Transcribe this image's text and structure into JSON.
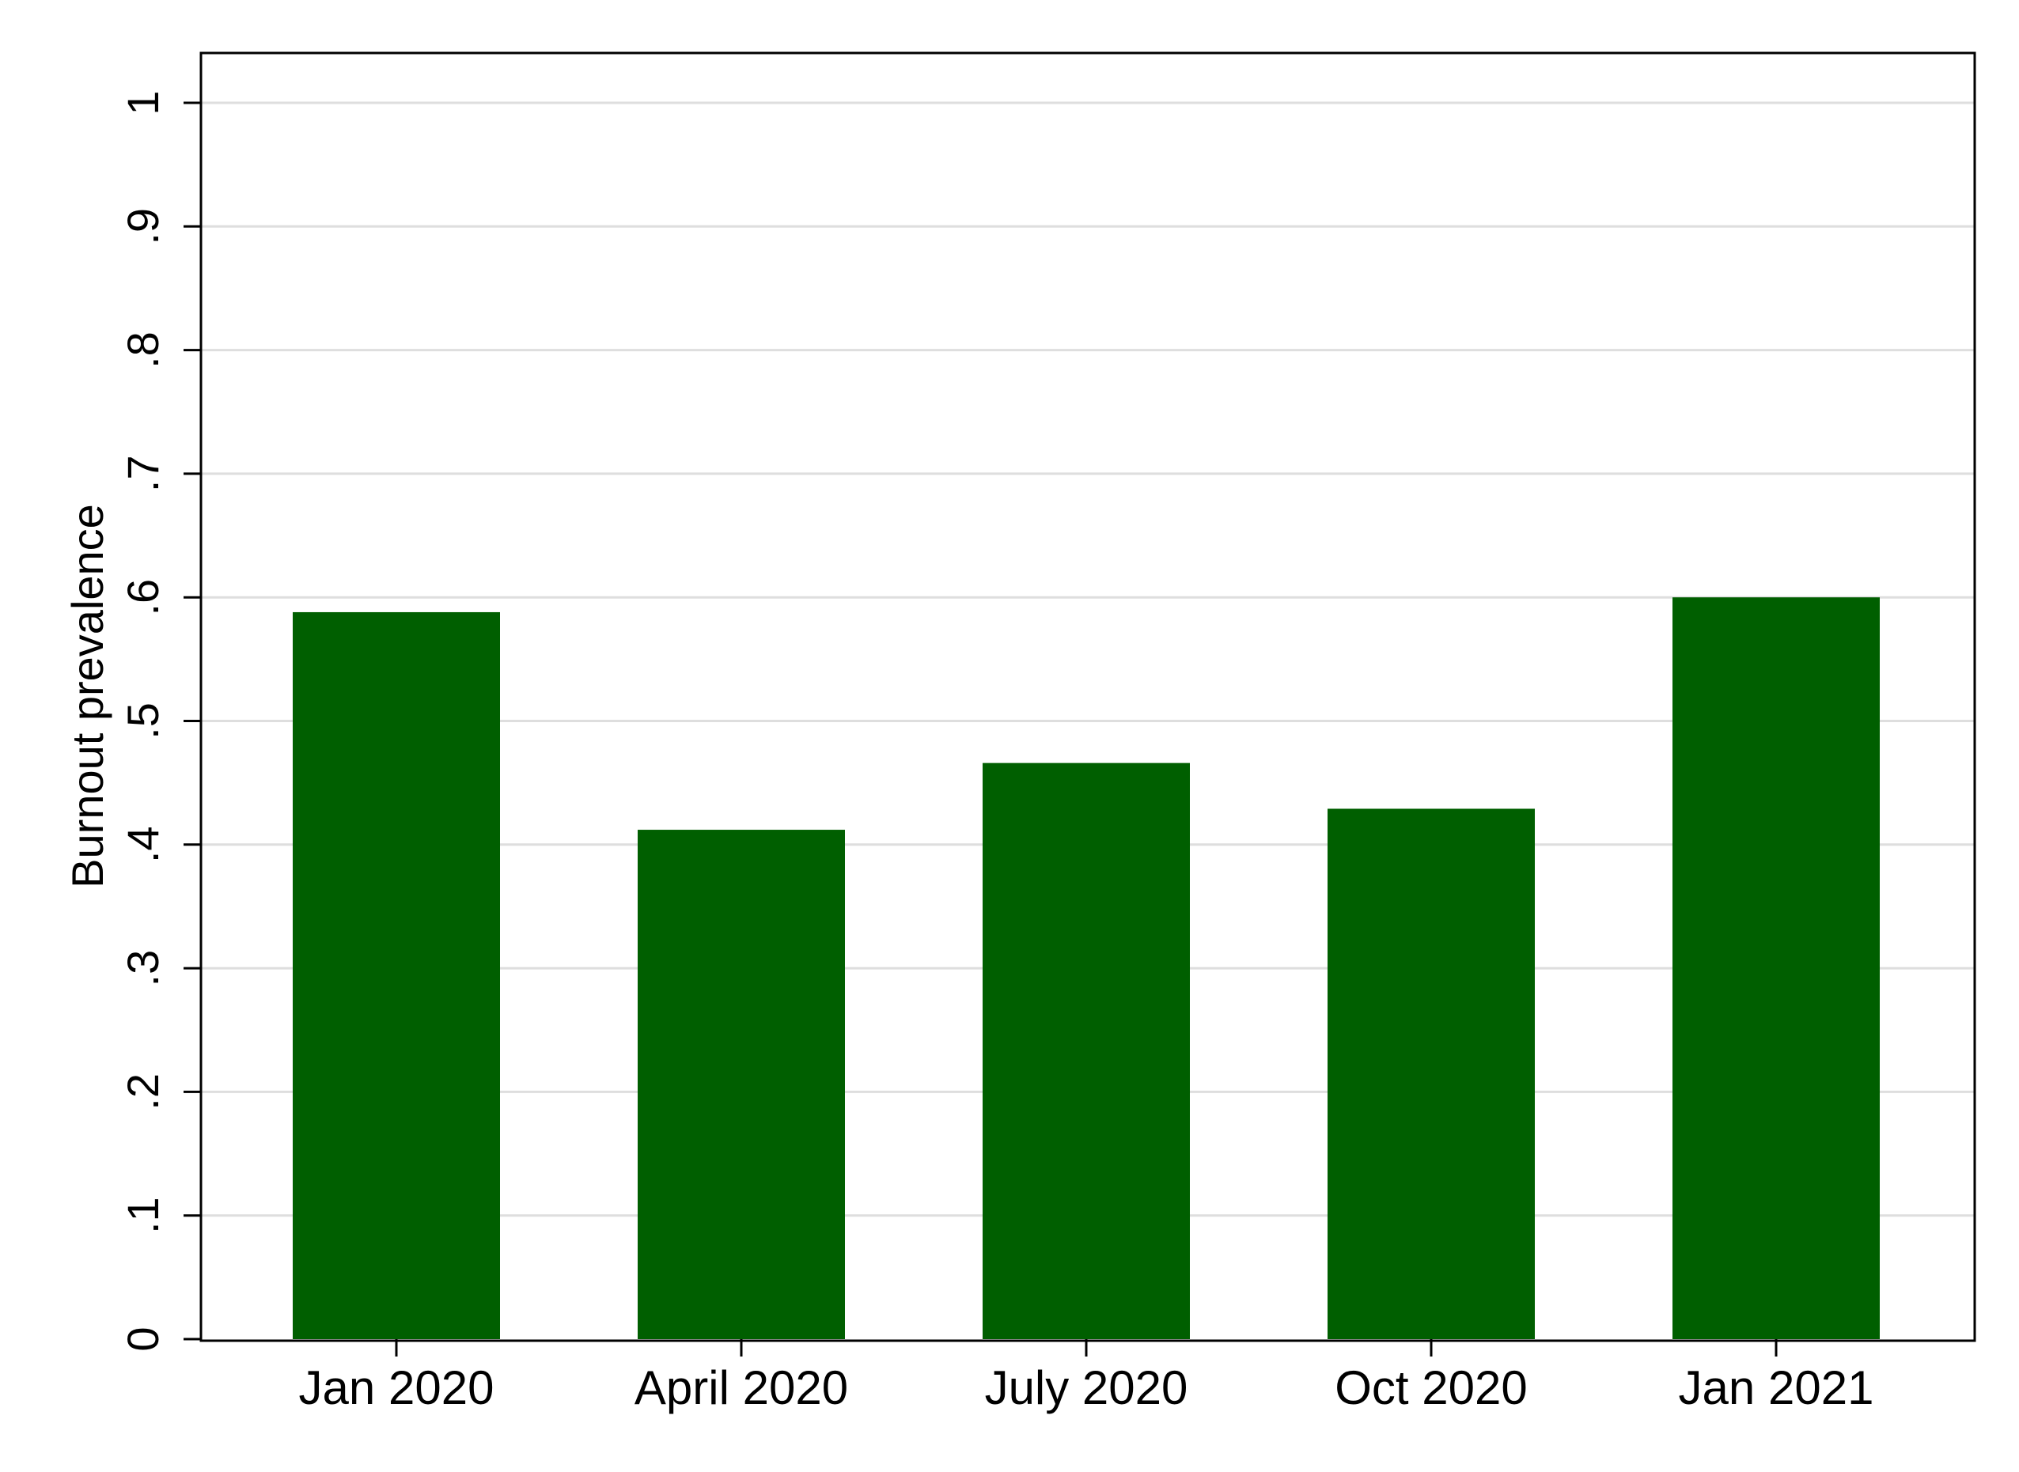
{
  "chart_data": {
    "type": "bar",
    "title": "",
    "xlabel": "",
    "ylabel": "Burnout prevalence",
    "categories": [
      "Jan 2020",
      "April 2020",
      "July 2020",
      "Oct 2020",
      "Jan 2021"
    ],
    "values": [
      0.588,
      0.412,
      0.466,
      0.429,
      0.6
    ],
    "ylim": [
      0,
      1
    ],
    "yticks": [
      0,
      0.1,
      0.2,
      0.3,
      0.4,
      0.5,
      0.6,
      0.7,
      0.8,
      0.9,
      1
    ],
    "ytick_labels": [
      "0",
      ".1",
      ".2",
      ".3",
      ".4",
      ".5",
      ".6",
      ".7",
      ".8",
      ".9",
      "1"
    ],
    "grid": true,
    "bar_color": "#005f00",
    "grid_color": "#dedede"
  }
}
